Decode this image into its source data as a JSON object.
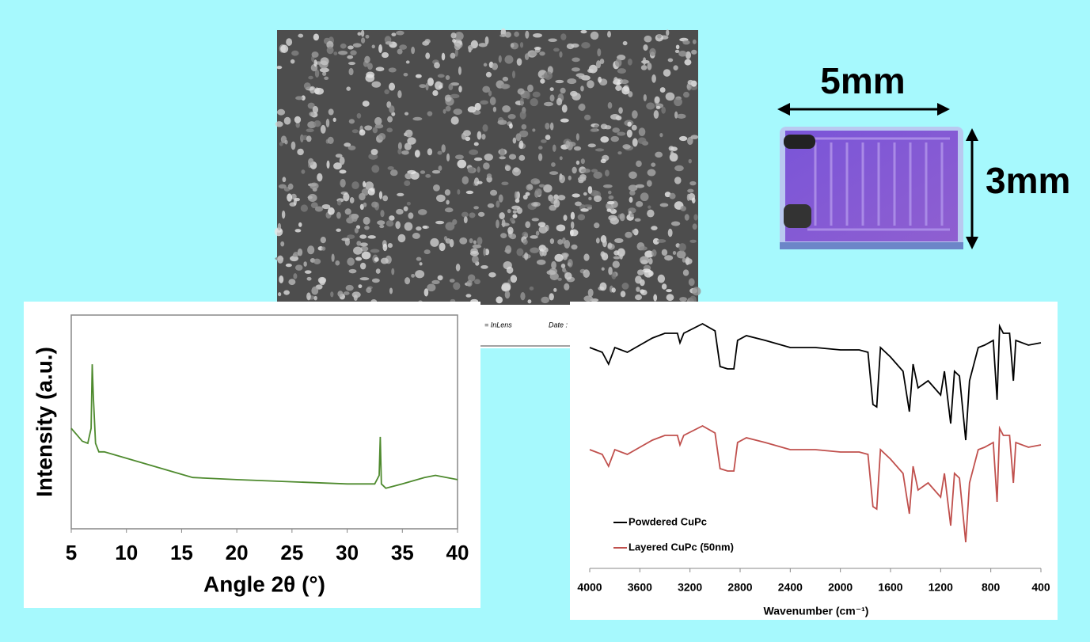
{
  "chart_data": [
    {
      "type": "line",
      "x_label": "Angle 2θ (°)",
      "y_label": "Intensity (a.u.)",
      "x": [
        5,
        5.5,
        6,
        6.5,
        6.8,
        6.9,
        7.0,
        7.2,
        7.5,
        8,
        10,
        12,
        14,
        16,
        20,
        25,
        30,
        32.5,
        32.9,
        33.0,
        33.1,
        33.5,
        35,
        37,
        38,
        40
      ],
      "values": [
        47,
        44,
        41,
        40,
        47,
        77,
        62,
        40,
        36,
        36,
        33,
        30,
        27,
        24,
        23,
        22,
        21,
        21,
        25,
        43,
        21,
        19,
        21,
        24,
        25,
        23
      ],
      "color": "#4e8a2e",
      "xlim": [
        5,
        40
      ],
      "ylim": [
        0,
        100
      ],
      "xticks": [
        5,
        10,
        15,
        20,
        25,
        30,
        35,
        40
      ]
    },
    {
      "type": "line",
      "x_label": "Wavenumber (cm⁻¹)",
      "x": [
        4000,
        3900,
        3850,
        3800,
        3700,
        3600,
        3500,
        3400,
        3300,
        3280,
        3250,
        3100,
        3000,
        2960,
        2900,
        2850,
        2820,
        2750,
        2600,
        2400,
        2200,
        2000,
        1850,
        1780,
        1740,
        1710,
        1680,
        1600,
        1500,
        1450,
        1420,
        1380,
        1300,
        1200,
        1170,
        1120,
        1090,
        1050,
        1000,
        970,
        900,
        850,
        780,
        750,
        730,
        700,
        650,
        620,
        600,
        500,
        400
      ],
      "series": [
        {
          "name": "Powdered CuPc",
          "color": "#000000",
          "values": [
            87,
            85,
            80,
            87,
            85,
            88,
            91,
            93,
            93,
            89,
            93,
            97,
            94,
            79,
            78,
            78,
            90,
            92,
            90,
            87,
            87,
            86,
            86,
            85,
            63,
            62,
            87,
            83,
            77,
            60,
            80,
            70,
            73,
            67,
            77,
            55,
            77,
            75,
            48,
            73,
            87,
            88,
            90,
            65,
            96,
            93,
            93,
            73,
            90,
            88,
            89
          ]
        },
        {
          "name": "Layered CuPc (50nm)",
          "color": "#c0504d",
          "values": [
            44,
            42,
            37,
            44,
            42,
            45,
            48,
            50,
            50,
            46,
            50,
            54,
            51,
            36,
            35,
            35,
            47,
            49,
            47,
            44,
            44,
            43,
            43,
            42,
            20,
            19,
            44,
            40,
            34,
            17,
            37,
            27,
            30,
            24,
            34,
            12,
            34,
            32,
            5,
            30,
            44,
            45,
            47,
            22,
            53,
            50,
            50,
            30,
            47,
            45,
            46
          ]
        }
      ],
      "xlim": [
        4000,
        400
      ],
      "ylim": [
        0,
        100
      ],
      "xticks": [
        4000,
        3600,
        3200,
        2800,
        2400,
        2000,
        1600,
        1200,
        800,
        400
      ]
    }
  ],
  "image_labels": {
    "width": "5mm",
    "height": "3mm"
  },
  "sem_info": [
    "= InLens",
    "Date :"
  ]
}
